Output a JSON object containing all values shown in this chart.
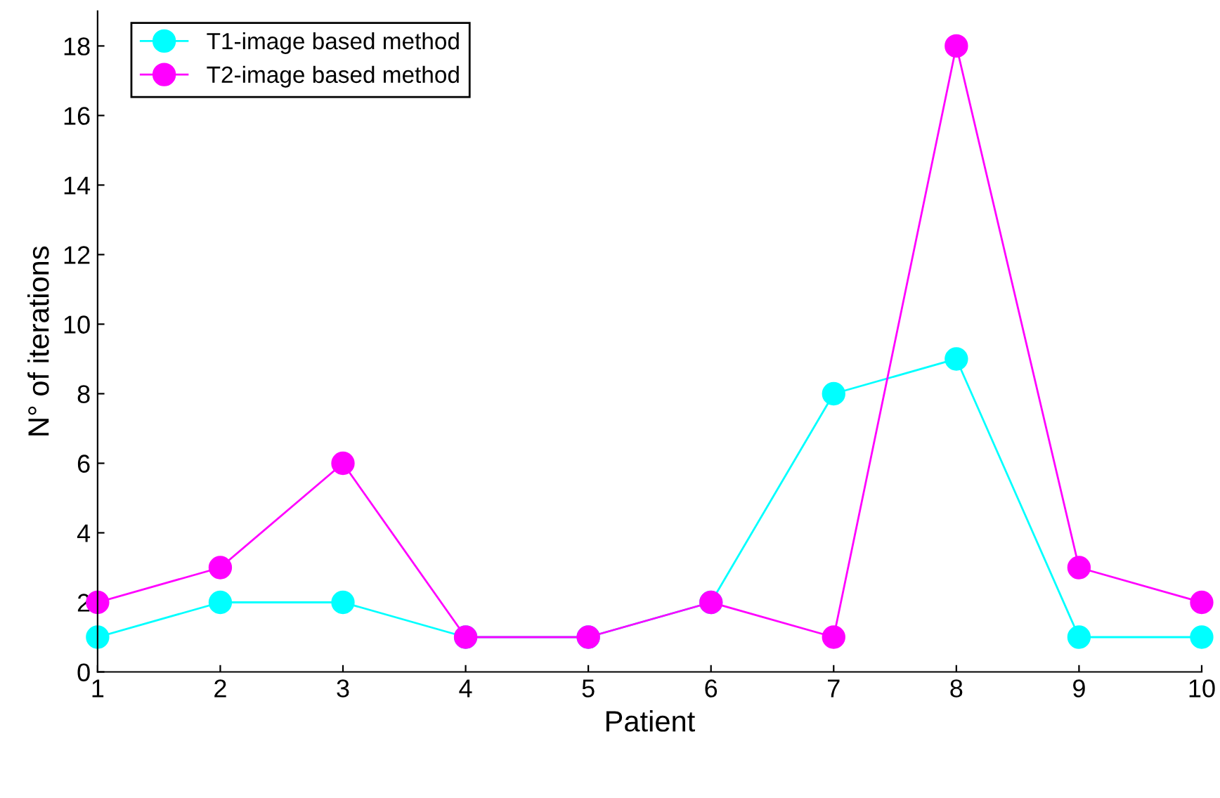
{
  "chart_data": {
    "type": "line",
    "xlabel": "Patient",
    "ylabel": "N° of iterations",
    "x": [
      1,
      2,
      3,
      4,
      5,
      6,
      7,
      8,
      9,
      10
    ],
    "series": [
      {
        "name": "T1-image based method",
        "color": "#00ffff",
        "values": [
          1,
          2,
          2,
          1,
          1,
          2,
          8,
          9,
          1,
          1
        ]
      },
      {
        "name": "T2-image based method",
        "color": "#ff00ff",
        "values": [
          2,
          3,
          6,
          1,
          1,
          2,
          1,
          18,
          3,
          2
        ]
      }
    ],
    "xlim": [
      1,
      10
    ],
    "xticks": [
      1,
      2,
      3,
      4,
      5,
      6,
      7,
      8,
      9,
      10
    ],
    "ylim": [
      0,
      19
    ],
    "yticks": [
      0,
      2,
      4,
      6,
      8,
      10,
      12,
      14,
      16,
      18
    ],
    "grid": false,
    "legend": "top left",
    "marker": "circle",
    "line_style": "solid"
  }
}
